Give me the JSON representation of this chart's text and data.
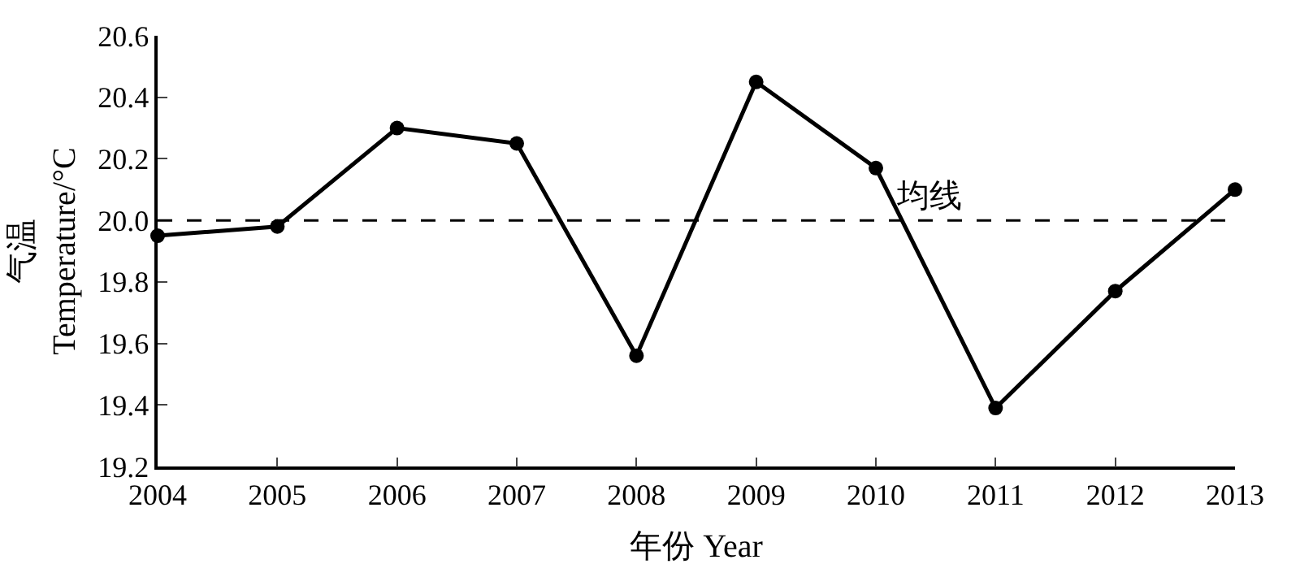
{
  "chart_data": {
    "type": "line",
    "xlabel": "年份 Year",
    "ylabel": "气温\nTemperature/°C",
    "x": [
      2004,
      2005,
      2006,
      2007,
      2008,
      2009,
      2010,
      2011,
      2012,
      2013
    ],
    "series": [
      {
        "color": "#000000",
        "values": [
          19.95,
          19.98,
          20.3,
          20.25,
          19.56,
          20.45,
          20.17,
          19.39,
          19.77,
          20.1
        ]
      }
    ],
    "xlim": [
      2004,
      2013
    ],
    "xticks": [
      2004,
      2005,
      2006,
      2007,
      2008,
      2009,
      2010,
      2011,
      2012,
      2013
    ],
    "ylim": [
      19.2,
      20.6
    ],
    "yticks": [
      {
        "value": 19.2,
        "label": "19.2"
      },
      {
        "value": 19.4,
        "label": "19.4"
      },
      {
        "value": 19.6,
        "label": "19.6"
      },
      {
        "value": 19.8,
        "label": "19.8"
      },
      {
        "value": 20.0,
        "label": "20.0"
      },
      {
        "value": 20.2,
        "label": "20.2"
      },
      {
        "value": 20.4,
        "label": "20.4"
      },
      {
        "value": 20.6,
        "label": "20.6"
      }
    ],
    "ref_lines": [
      {
        "axis": "y",
        "value": 20.0,
        "label": "均线",
        "color": "#000000",
        "line_style": "dashed"
      }
    ],
    "marker": "circle",
    "line_style": "solid",
    "legend": false
  }
}
